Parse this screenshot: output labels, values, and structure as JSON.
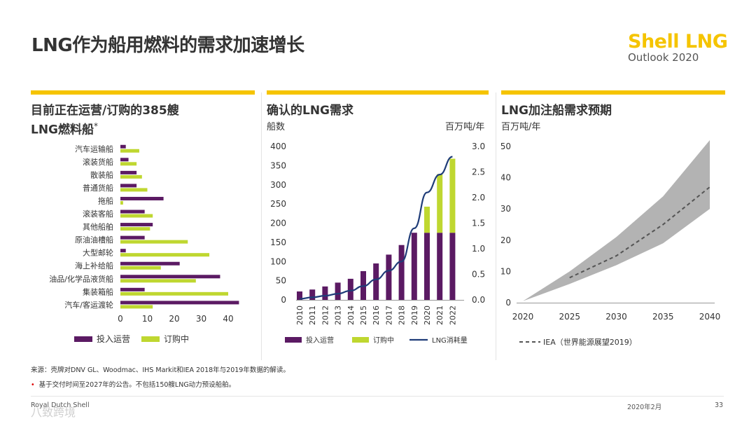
{
  "page": {
    "title": "LNG作为船用燃料的需求加速增长",
    "brand": "Shell LNG",
    "brand_sub": "Outlook 2020",
    "source": "来源：壳牌对DNV GL、Woodmac、IHS Markit和IEA 2018年与2019年数据的解读。",
    "note": "基于交付时间至2027年的公告。不包括150艘LNG动力预设船舶。",
    "note_marker": "•",
    "footer_left": "Royal Dutch Shell",
    "footer_date": "2020年2月",
    "footer_page": "33",
    "watermark": "八致跨境"
  },
  "colors": {
    "accent": "#f5c400",
    "purple": "#5b1a63",
    "green": "#bfd730",
    "navy": "#1f3c78",
    "band": "#b3b3b3",
    "dashed": "#555555"
  },
  "chart_data": [
    {
      "type": "bar",
      "orientation": "horizontal",
      "title": "目前正在运营/订购的385艘LNG燃料船",
      "title_line1": "目前正在运营/订购的385艘",
      "title_line2": "LNG燃料船",
      "title_mark": "*",
      "categories": [
        "汽车运输船",
        "滚装货船",
        "散装船",
        "普通货船",
        "拖船",
        "滚装客船",
        "其他船舶",
        "原油油槽船",
        "大型邮轮",
        "海上补给船",
        "油品/化学品液货船",
        "集装箱船",
        "汽车/客运渡轮"
      ],
      "series": [
        {
          "name": "投入运营",
          "values": [
            2,
            3,
            6,
            6,
            16,
            9,
            12,
            9,
            2,
            22,
            37,
            9,
            44
          ]
        },
        {
          "name": "订购中",
          "values": [
            7,
            6,
            8,
            10,
            1,
            12,
            11,
            25,
            33,
            15,
            28,
            40,
            12
          ]
        }
      ],
      "xlim": [
        0,
        45
      ],
      "xticks": [
        0,
        10,
        20,
        30,
        40
      ],
      "legend": [
        "投入运营",
        "订购中"
      ]
    },
    {
      "type": "bar",
      "stacked": true,
      "title": "确认的LNG需求",
      "ylabel_left": "船数",
      "ylabel_right": "百万吨/年",
      "categories": [
        "2010",
        "2011",
        "2012",
        "2013",
        "2014",
        "2015",
        "2016",
        "2017",
        "2018",
        "2019",
        "2020",
        "2021",
        "2022"
      ],
      "series": [
        {
          "name": "投入运营",
          "values": [
            22,
            27,
            35,
            45,
            55,
            75,
            95,
            118,
            143,
            175,
            175,
            175,
            175
          ]
        },
        {
          "name": "订购中",
          "values": [
            0,
            0,
            0,
            0,
            0,
            0,
            0,
            0,
            0,
            0,
            68,
            153,
            193
          ]
        },
        {
          "name": "LNG消耗量",
          "axis": "right",
          "values": [
            0.02,
            0.05,
            0.08,
            0.12,
            0.18,
            0.27,
            0.4,
            0.57,
            0.75,
            1.4,
            2.1,
            2.45,
            2.8
          ]
        }
      ],
      "ylim_left": [
        0,
        400
      ],
      "yticks_left": [
        0,
        50,
        100,
        150,
        200,
        250,
        300,
        350,
        400
      ],
      "ylim_right": [
        0,
        3.0
      ],
      "yticks_right": [
        "0.0",
        "0.5",
        "1.0",
        "1.5",
        "2.0",
        "2.5",
        "3.0"
      ],
      "legend": [
        "投入运营",
        "订购中",
        "LNG消耗量"
      ]
    },
    {
      "type": "area",
      "title": "LNG加注船需求预期",
      "ylabel": "百万吨/年",
      "x": [
        2020,
        2025,
        2030,
        2035,
        2040
      ],
      "band_low": [
        0.5,
        6,
        12,
        19,
        30
      ],
      "band_high": [
        0.5,
        10,
        21,
        34,
        52
      ],
      "series": [
        {
          "name": "IEA（世界能源展望2019）",
          "x": [
            2025,
            2030,
            2035,
            2040
          ],
          "values": [
            8,
            15,
            25,
            37
          ]
        }
      ],
      "ylim": [
        0,
        52
      ],
      "yticks": [
        0,
        10,
        20,
        30,
        40,
        50
      ],
      "xticks": [
        "2020",
        "2025",
        "2030",
        "2035",
        "2040"
      ],
      "legend": [
        "IEA（世界能源展望2019）"
      ]
    }
  ]
}
